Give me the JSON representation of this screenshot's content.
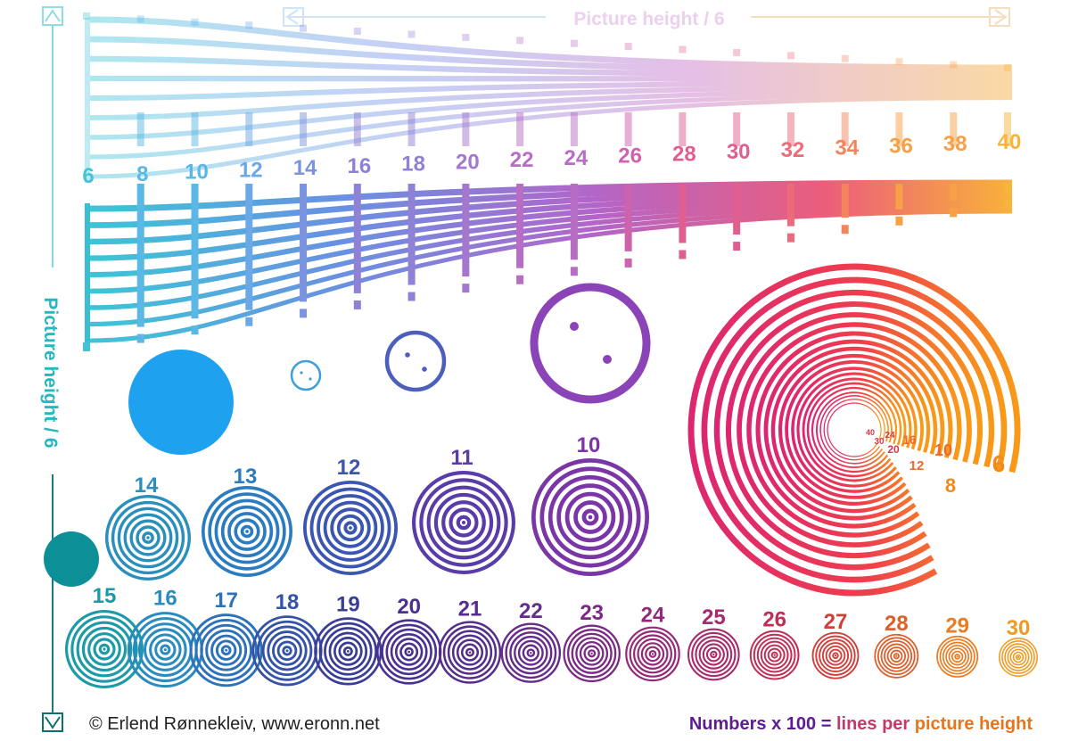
{
  "top_label": "Picture height / 6",
  "side_label": "Picture height / 6",
  "wedge": {
    "numbers": [
      "6",
      "8",
      "10",
      "12",
      "14",
      "16",
      "18",
      "20",
      "22",
      "24",
      "26",
      "28",
      "30",
      "32",
      "34",
      "36",
      "38",
      "40"
    ],
    "palette": [
      "#45c3d8",
      "#5bb7e4",
      "#6aa8e8",
      "#7c93e0",
      "#8f82d6",
      "#a478cc",
      "#b86dc4",
      "#cd62ad",
      "#df5f91",
      "#ec6a79",
      "#f2855d",
      "#f6a048",
      "#f8b53e"
    ]
  },
  "solid_circles": [
    {
      "name": "large-blue-dot",
      "color": "#1ea1ef"
    },
    {
      "name": "small-teal-dot",
      "color": "#0d8f98"
    }
  ],
  "dotted_circles": [
    {
      "name": "tiny-ring",
      "color": "#3f9fd8"
    },
    {
      "name": "small-ring",
      "color": "#4c5fbd"
    },
    {
      "name": "large-ring",
      "color": "#8b44b8"
    }
  ],
  "big_target": {
    "labels": [
      "6",
      "8",
      "10",
      "12",
      "16",
      "20",
      "24",
      "30",
      "40"
    ]
  },
  "targets_row1": [
    {
      "label": "14",
      "color": "#2a8fbb"
    },
    {
      "label": "13",
      "color": "#2a7bbf"
    },
    {
      "label": "12",
      "color": "#3a56b0"
    },
    {
      "label": "11",
      "color": "#5a3ca8"
    },
    {
      "label": "10",
      "color": "#7a35a6"
    }
  ],
  "targets_row2": [
    {
      "label": "15",
      "color": "#1c9aa6"
    },
    {
      "label": "16",
      "color": "#2a8bbd"
    },
    {
      "label": "17",
      "color": "#2d72b8"
    },
    {
      "label": "18",
      "color": "#3553a6"
    },
    {
      "label": "19",
      "color": "#3a3d95"
    },
    {
      "label": "20",
      "color": "#48318f"
    },
    {
      "label": "21",
      "color": "#552d8b"
    },
    {
      "label": "22",
      "color": "#662c8a"
    },
    {
      "label": "23",
      "color": "#7a2a85"
    },
    {
      "label": "24",
      "color": "#932978"
    },
    {
      "label": "25",
      "color": "#a82a6c"
    },
    {
      "label": "26",
      "color": "#bf2f55"
    },
    {
      "label": "27",
      "color": "#d13f3b"
    },
    {
      "label": "28",
      "color": "#de5e2a"
    },
    {
      "label": "29",
      "color": "#ea7c22"
    },
    {
      "label": "30",
      "color": "#f19a22"
    }
  ],
  "footer": {
    "copyright": "© Erlend Rønnekleiv, www.eronn.net",
    "note_a": "Numbers x 100 = ",
    "note_b": "lines per ",
    "note_c": "picture height"
  }
}
